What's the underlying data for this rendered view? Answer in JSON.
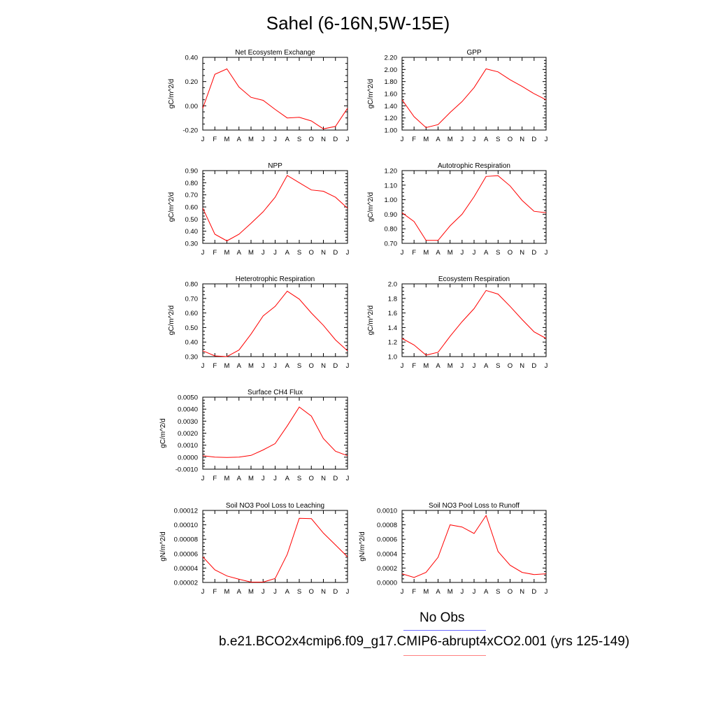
{
  "title": "Sahel (6-16N,5W-15E)",
  "legend": {
    "no_obs": "No Obs",
    "run": "b.e21.BCO2x4cmip6.f09_g17.CMIP6-abrupt4xCO2.001 (yrs 125-149)",
    "obs_color": "#6b6bff",
    "model_color": "#ff8080"
  },
  "colors": {
    "line": "#ff0000",
    "axis": "#000000"
  },
  "months": [
    "J",
    "F",
    "M",
    "A",
    "M",
    "J",
    "J",
    "A",
    "S",
    "O",
    "N",
    "D",
    "J"
  ],
  "chart_data": [
    {
      "type": "line",
      "title": "Net Ecosystem Exchange",
      "ylabel": "gC/m^2/d",
      "ylim": [
        -0.2,
        0.4
      ],
      "yticks": [
        -0.2,
        0.0,
        0.2,
        0.4
      ],
      "yticklabels": [
        "-0.20",
        "0.00",
        "0.20",
        "0.40"
      ],
      "values": [
        -0.02,
        0.26,
        0.305,
        0.155,
        0.07,
        0.045,
        -0.03,
        -0.1,
        -0.095,
        -0.125,
        -0.19,
        -0.17,
        -0.02
      ]
    },
    {
      "type": "line",
      "title": "GPP",
      "ylabel": "gC/m^2/d",
      "ylim": [
        1.0,
        2.2
      ],
      "yticks": [
        1.0,
        1.2,
        1.4,
        1.6,
        1.8,
        2.0,
        2.2
      ],
      "yticklabels": [
        "1.00",
        "1.20",
        "1.40",
        "1.60",
        "1.80",
        "2.00",
        "2.20"
      ],
      "values": [
        1.5,
        1.22,
        1.04,
        1.09,
        1.29,
        1.47,
        1.7,
        2.01,
        1.96,
        1.83,
        1.72,
        1.6,
        1.5
      ]
    },
    {
      "type": "line",
      "title": "NPP",
      "ylabel": "gC/m^2/d",
      "ylim": [
        0.3,
        0.9
      ],
      "yticks": [
        0.3,
        0.4,
        0.5,
        0.6,
        0.7,
        0.8,
        0.9
      ],
      "yticklabels": [
        "0.30",
        "0.40",
        "0.50",
        "0.60",
        "0.70",
        "0.80",
        "0.90"
      ],
      "values": [
        0.59,
        0.375,
        0.32,
        0.375,
        0.465,
        0.56,
        0.68,
        0.86,
        0.8,
        0.74,
        0.73,
        0.68,
        0.59
      ]
    },
    {
      "type": "line",
      "title": "Autotrophic Respiration",
      "ylabel": "gC/m^2/d",
      "ylim": [
        0.7,
        1.2
      ],
      "yticks": [
        0.7,
        0.8,
        0.9,
        1.0,
        1.1,
        1.2
      ],
      "yticklabels": [
        "0.70",
        "0.80",
        "0.90",
        "1.00",
        "1.10",
        "1.20"
      ],
      "values": [
        0.91,
        0.85,
        0.72,
        0.72,
        0.82,
        0.9,
        1.02,
        1.16,
        1.165,
        1.095,
        0.995,
        0.92,
        0.91
      ]
    },
    {
      "type": "line",
      "title": "Heterotrophic Respiration",
      "ylabel": "gC/m^2/d",
      "ylim": [
        0.3,
        0.8
      ],
      "yticks": [
        0.3,
        0.4,
        0.5,
        0.6,
        0.7,
        0.8
      ],
      "yticklabels": [
        "0.30",
        "0.40",
        "0.50",
        "0.60",
        "0.70",
        "0.80"
      ],
      "values": [
        0.34,
        0.305,
        0.3,
        0.345,
        0.455,
        0.58,
        0.645,
        0.75,
        0.695,
        0.6,
        0.515,
        0.415,
        0.34
      ]
    },
    {
      "type": "line",
      "title": "Ecosystem Respiration",
      "ylabel": "gC/m^2/d",
      "ylim": [
        1.0,
        2.0
      ],
      "yticks": [
        1.0,
        1.2,
        1.4,
        1.6,
        1.8,
        2.0
      ],
      "yticklabels": [
        "1.0",
        "1.2",
        "1.4",
        "1.6",
        "1.8",
        "2.0"
      ],
      "values": [
        1.25,
        1.16,
        1.02,
        1.06,
        1.28,
        1.48,
        1.66,
        1.91,
        1.86,
        1.69,
        1.51,
        1.34,
        1.25
      ]
    },
    {
      "type": "line",
      "title": "Surface CH4 Flux",
      "ylabel": "gC/m^2/d",
      "ylim": [
        -0.001,
        0.005
      ],
      "yticks": [
        -0.001,
        0.0,
        0.001,
        0.002,
        0.003,
        0.004,
        0.005
      ],
      "yticklabels": [
        "-0.0010",
        "0.0000",
        "0.0010",
        "0.0020",
        "0.0030",
        "0.0040",
        "0.0050"
      ],
      "values": [
        0.00012,
        0.0,
        -3e-05,
        0.0,
        0.00015,
        0.0006,
        0.00113,
        0.0026,
        0.00418,
        0.00342,
        0.00155,
        0.0005,
        0.00012
      ]
    },
    {
      "type": "line",
      "title": "Soil NO3 Pool Loss to Leaching",
      "ylabel": "gN/m^2/d",
      "ylim": [
        2e-05,
        0.00012
      ],
      "yticks": [
        2e-05,
        4e-05,
        6e-05,
        8e-05,
        0.0001,
        0.00012
      ],
      "yticklabels": [
        "0.00002",
        "0.00004",
        "0.00006",
        "0.00008",
        "0.00010",
        "0.00012"
      ],
      "values": [
        5.55e-05,
        3.75e-05,
        2.9e-05,
        2.45e-05,
        2.05e-05,
        2.05e-05,
        2.55e-05,
        5.9e-05,
        0.000109,
        0.0001085,
        8.85e-05,
        7.2e-05,
        5.55e-05
      ]
    },
    {
      "type": "line",
      "title": "Soil NO3 Pool Loss to Runoff",
      "ylabel": "gN/m^2/d",
      "ylim": [
        0.0,
        0.001
      ],
      "yticks": [
        0.0,
        0.0002,
        0.0004,
        0.0006,
        0.0008,
        0.001
      ],
      "yticklabels": [
        "0.0000",
        "0.0002",
        "0.0004",
        "0.0006",
        "0.0008",
        "0.0010"
      ],
      "values": [
        0.00012,
        7e-05,
        0.00014,
        0.00035,
        0.0008,
        0.00077,
        0.00068,
        0.00093,
        0.00043,
        0.00024,
        0.00014,
        0.00011,
        0.00012
      ]
    }
  ]
}
